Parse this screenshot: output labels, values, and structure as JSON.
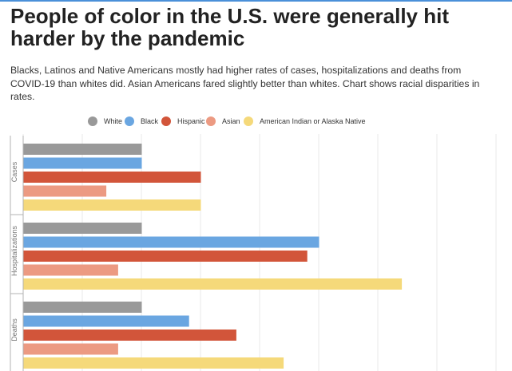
{
  "header": {
    "title": "People of color in the U.S. were generally hit harder by the pandemic",
    "subtitle": "Blacks, Latinos and Native Americans mostly had higher rates of cases, hospitalizations and deaths from COVID-19 than whites did. Asian Americans fared slightly better than whites. Chart shows racial disparities in rates."
  },
  "legend": [
    {
      "label": "White",
      "color": "#999999"
    },
    {
      "label": "Black",
      "color": "#6aa6e1"
    },
    {
      "label": "Hispanic",
      "color": "#d2553a"
    },
    {
      "label": "Asian",
      "color": "#ec9a82"
    },
    {
      "label": "American Indian or Alaska Native",
      "color": "#f5d97a"
    }
  ],
  "chart_data": {
    "type": "bar",
    "orientation": "horizontal",
    "title": "People of color in the U.S. were generally hit harder by the pandemic",
    "categories": [
      "Cases",
      "Hospitalizations",
      "Deaths"
    ],
    "series": [
      {
        "name": "White",
        "color": "#999999",
        "values": [
          1.0,
          1.0,
          1.0
        ]
      },
      {
        "name": "Black",
        "color": "#6aa6e1",
        "values": [
          1.0,
          2.5,
          1.4
        ]
      },
      {
        "name": "Hispanic",
        "color": "#d2553a",
        "values": [
          1.5,
          2.4,
          1.8
        ]
      },
      {
        "name": "Asian",
        "color": "#ec9a82",
        "values": [
          0.7,
          0.8,
          0.8
        ]
      },
      {
        "name": "American Indian or Alaska Native",
        "color": "#f5d97a",
        "values": [
          1.5,
          3.2,
          2.2
        ]
      }
    ],
    "xlim": [
      0,
      4
    ],
    "gridlines": [
      0,
      0.5,
      1,
      1.5,
      2,
      2.5,
      3,
      3.5,
      4
    ],
    "xlabel": "",
    "ylabel": "",
    "tick_labels_visible": false,
    "grid": true
  }
}
